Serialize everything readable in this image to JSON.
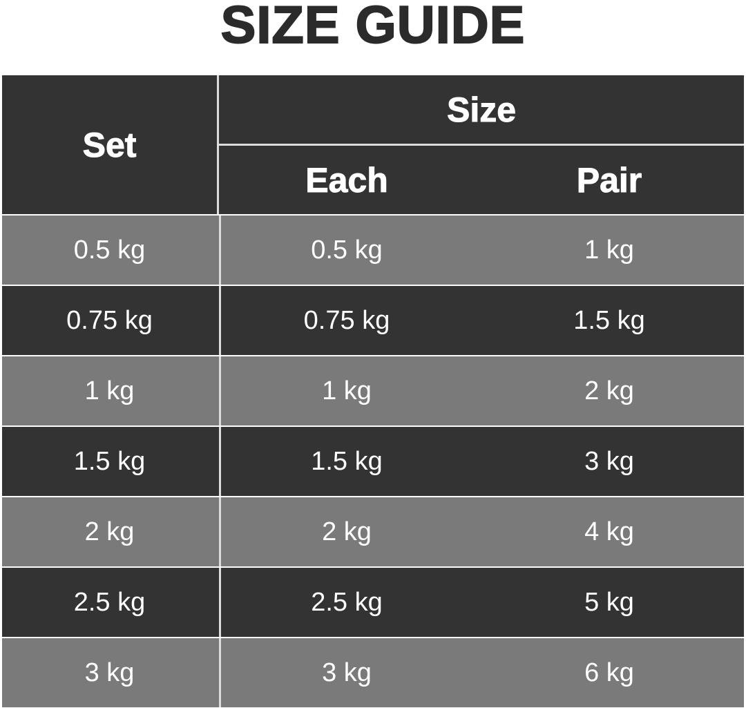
{
  "title": "SIZE GUIDE",
  "table": {
    "headers": {
      "set": "Set",
      "size": "Size",
      "each": "Each",
      "pair": "Pair"
    },
    "rows": [
      {
        "set": "0.5 kg",
        "each": "0.5 kg",
        "pair": "1 kg",
        "shade": "gray"
      },
      {
        "set": "0.75 kg",
        "each": "0.75 kg",
        "pair": "1.5 kg",
        "shade": "dark"
      },
      {
        "set": "1 kg",
        "each": "1 kg",
        "pair": "2 kg",
        "shade": "gray"
      },
      {
        "set": "1.5 kg",
        "each": "1.5 kg",
        "pair": "3 kg",
        "shade": "dark"
      },
      {
        "set": "2 kg",
        "each": "2 kg",
        "pair": "4 kg",
        "shade": "gray"
      },
      {
        "set": "2.5 kg",
        "each": "2.5 kg",
        "pair": "5 kg",
        "shade": "dark"
      },
      {
        "set": "3 kg",
        "each": "3 kg",
        "pair": "6 kg",
        "shade": "gray"
      }
    ]
  },
  "colors": {
    "dark": "#333333",
    "gray": "#7a7a7a",
    "line": "#dddddd"
  }
}
